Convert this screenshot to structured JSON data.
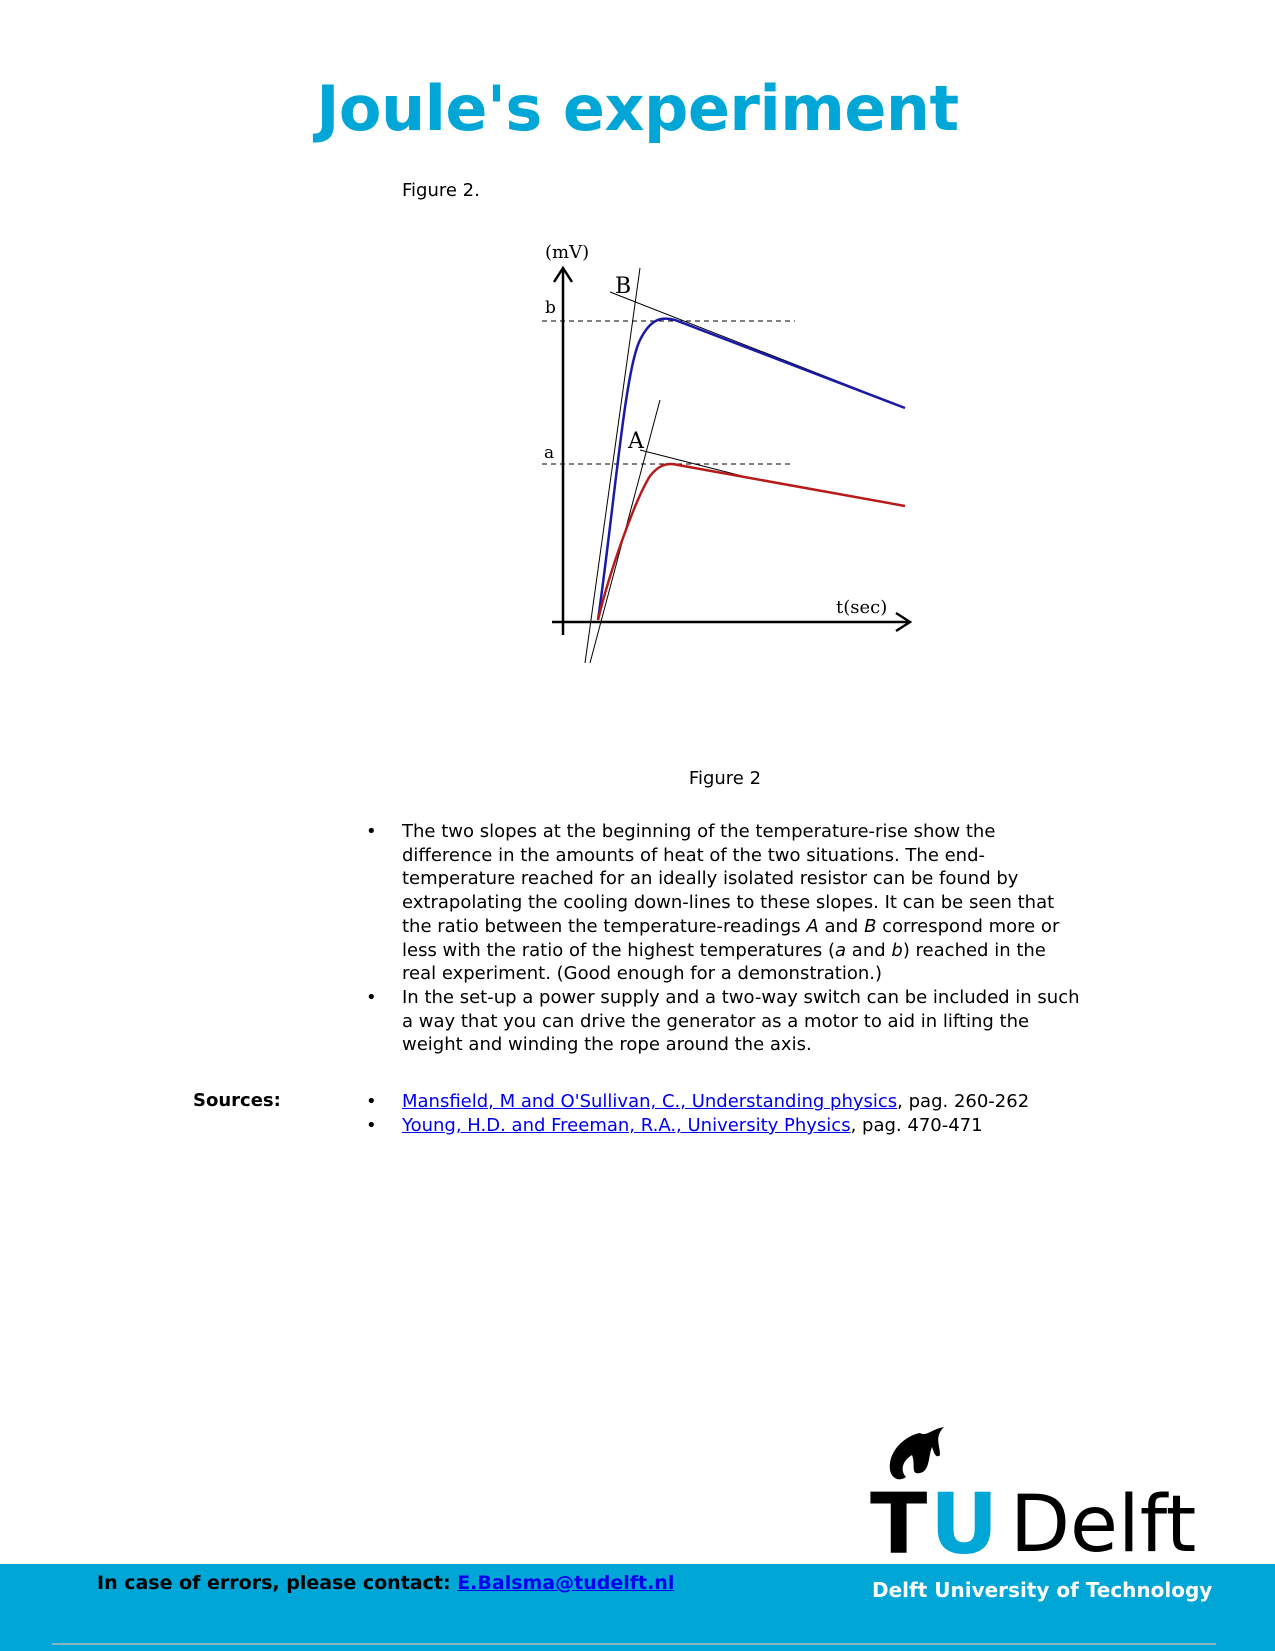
{
  "page": {
    "title": "Joule's experiment",
    "figure_label_top": "Figure 2.",
    "figure_caption": "Figure 2"
  },
  "figure": {
    "y_axis_label": "(mV)",
    "x_axis_label": "t(sec)",
    "marker_b": "b",
    "marker_a": "a",
    "point_B": "B",
    "point_A": "A",
    "colors": {
      "upper_curve": "#1a1aa8",
      "lower_curve": "#b81a1a"
    }
  },
  "bullets": [
    {
      "parts": [
        "The two slopes at the beginning of the temperature-rise show the difference in the amounts of heat of the two situations. The end-temperature reached for an ideally isolated resistor can be found by extrapolating the cooling down-lines to these slopes. It can be seen that the ratio between the temperature-readings ",
        "A",
        " and ",
        "B",
        " correspond more or less with the ratio of the highest temperatures (",
        "a",
        " and ",
        "b",
        ") reached in the real experiment. (Good enough for a demonstration.)"
      ]
    },
    {
      "text": "In the set-up a power supply and a two-way switch can be included in such a way that you can drive the generator as a motor to aid in lifting the weight and winding the rope around the axis."
    }
  ],
  "sources": {
    "label": "Sources:",
    "items": [
      {
        "link": "Mansfield, M and O'Sullivan, C., Understanding physics",
        "suffix": ", pag. 260-262"
      },
      {
        "link": "Young, H.D. and Freeman, R.A., University Physics",
        "suffix": ", pag. 470-471"
      }
    ]
  },
  "footer": {
    "contact_label": "In case of errors, please contact:",
    "contact_email": "E.Balsma@tudelft.nl",
    "logo_text_tu": "TU",
    "logo_text_delft": "Delft",
    "university": "Delft University of Technology",
    "brand_color": "#00a6d6"
  }
}
